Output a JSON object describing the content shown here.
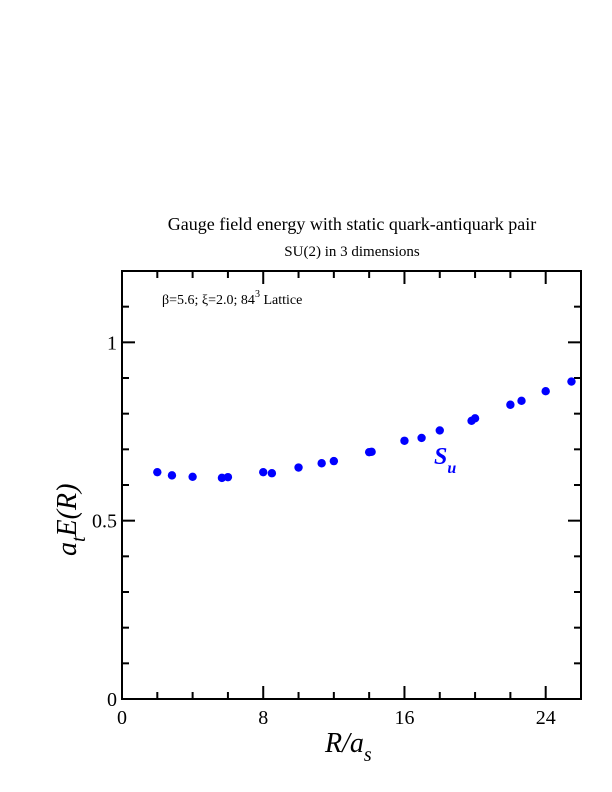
{
  "chart_data": {
    "type": "scatter",
    "title": "Gauge field energy with static quark-antiquark pair",
    "subtitle": "SU(2) in 3 dimensions",
    "xlabel": {
      "main": "R/a",
      "sub": "s"
    },
    "ylabel": {
      "pre": "a",
      "sub": "t",
      "post": "E(R)"
    },
    "xlim": [
      0,
      26
    ],
    "ylim": [
      0,
      1.2
    ],
    "x_ticks": [
      0,
      8,
      16,
      24
    ],
    "x_tick_labels": [
      "0",
      "8",
      "16",
      "24"
    ],
    "y_ticks": [
      0,
      0.5,
      1
    ],
    "y_tick_labels": [
      "0",
      "0.5",
      "1"
    ],
    "annotation": {
      "params": "β=5.6; ξ=2.0; 84",
      "exponent": "3",
      "suffix": " Lattice"
    },
    "series": [
      {
        "name": "S",
        "name_sub": "u",
        "color": "#0000ff",
        "points": [
          [
            2.0,
            0.636
          ],
          [
            2.83,
            0.627
          ],
          [
            4.0,
            0.623
          ],
          [
            5.66,
            0.62
          ],
          [
            6.0,
            0.622
          ],
          [
            8.0,
            0.636
          ],
          [
            8.49,
            0.633
          ],
          [
            10.0,
            0.649
          ],
          [
            11.31,
            0.661
          ],
          [
            12.0,
            0.667
          ],
          [
            14.0,
            0.692
          ],
          [
            14.14,
            0.693
          ],
          [
            16.0,
            0.724
          ],
          [
            16.97,
            0.732
          ],
          [
            18.0,
            0.753
          ],
          [
            19.8,
            0.78
          ],
          [
            20.0,
            0.787
          ],
          [
            22.0,
            0.825
          ],
          [
            22.63,
            0.836
          ],
          [
            24.0,
            0.863
          ],
          [
            25.46,
            0.89
          ]
        ]
      }
    ]
  }
}
